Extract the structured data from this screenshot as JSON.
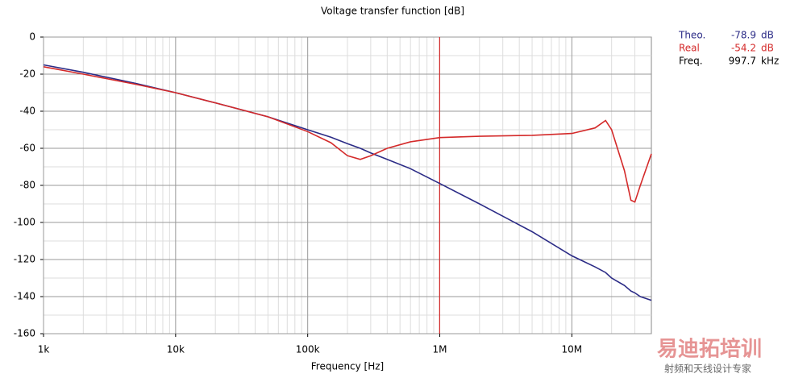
{
  "chart_data": {
    "type": "line",
    "title": "Voltage transfer function [dB]",
    "xlabel": "Frequency [Hz]",
    "x": [
      1000,
      2000,
      5000,
      10000,
      20000,
      50000,
      100000,
      150000,
      200000,
      250000,
      300000,
      400000,
      600000,
      1000000,
      2000000,
      5000000,
      10000000,
      15000000,
      18000000,
      20000000,
      25000000,
      28000000,
      30000000,
      33000000,
      40000000
    ],
    "series": [
      {
        "name": "Theo.",
        "color": "#2b2b86",
        "values": [
          -15,
          -19,
          -25,
          -30,
          -35.5,
          -43,
          -50,
          -54,
          -57.5,
          -60,
          -62.5,
          -66,
          -71,
          -79,
          -90,
          -105,
          -118,
          -124,
          -127,
          -130,
          -134,
          -137,
          -138,
          -140,
          -142
        ]
      },
      {
        "name": "Real",
        "color": "#d42a2a",
        "values": [
          -16,
          -20,
          -25.5,
          -30,
          -35.5,
          -43,
          -51,
          -57,
          -64,
          -66,
          -64,
          -60,
          -56.5,
          -54.2,
          -53.5,
          -53,
          -52,
          -49,
          -45,
          -50,
          -72,
          -88,
          -89,
          -80,
          -63
        ]
      }
    ],
    "xlog": true,
    "xlim": [
      1000,
      40000000
    ],
    "xticks": [
      {
        "value": 1000,
        "label": "1k"
      },
      {
        "value": 10000,
        "label": "10k"
      },
      {
        "value": 100000,
        "label": "100k"
      },
      {
        "value": 1000000,
        "label": "1M"
      },
      {
        "value": 10000000,
        "label": "10M"
      }
    ],
    "ylim": [
      -160,
      0
    ],
    "yticks": [
      -160,
      -140,
      -120,
      -100,
      -80,
      -60,
      -40,
      -20,
      0
    ],
    "grid": true,
    "minor_grid": true,
    "cursor_x": 997700,
    "cursor_color": "#d42a2a",
    "readout": [
      {
        "label": "Theo.",
        "value": -78.9,
        "unit": "dB",
        "color": "#2b2b86"
      },
      {
        "label": "Real",
        "value": -54.2,
        "unit": "dB",
        "color": "#d42a2a"
      },
      {
        "label": "Freq.",
        "value": 997.7,
        "unit": "kHz",
        "color": "#000000"
      }
    ]
  },
  "watermark": {
    "title": "易迪拓培训",
    "subtitle": "射频和天线设计专家"
  }
}
